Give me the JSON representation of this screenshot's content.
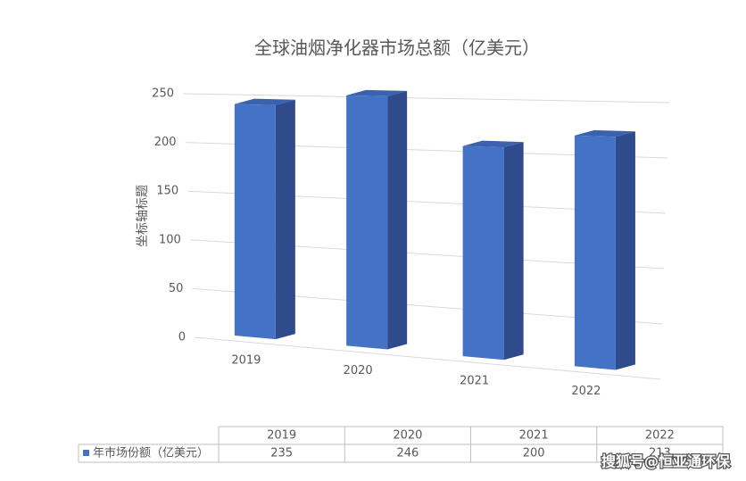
{
  "chart_data": {
    "type": "bar3d",
    "title": "全球油烟净化器市场总额（亿美元）",
    "y_label": "坐标轴标题",
    "categories": [
      "2019",
      "2020",
      "2021",
      "2022"
    ],
    "series": [
      {
        "name": "年市场份额（亿美元）",
        "color": "#4472c4",
        "values": [
          235,
          246,
          200,
          213
        ]
      }
    ],
    "ylim": [
      0,
      250
    ],
    "yticks": [
      0,
      50,
      100,
      150,
      200,
      250
    ],
    "grid": true,
    "data_table": true
  },
  "watermark": "搜狐号@恒亚通环保"
}
